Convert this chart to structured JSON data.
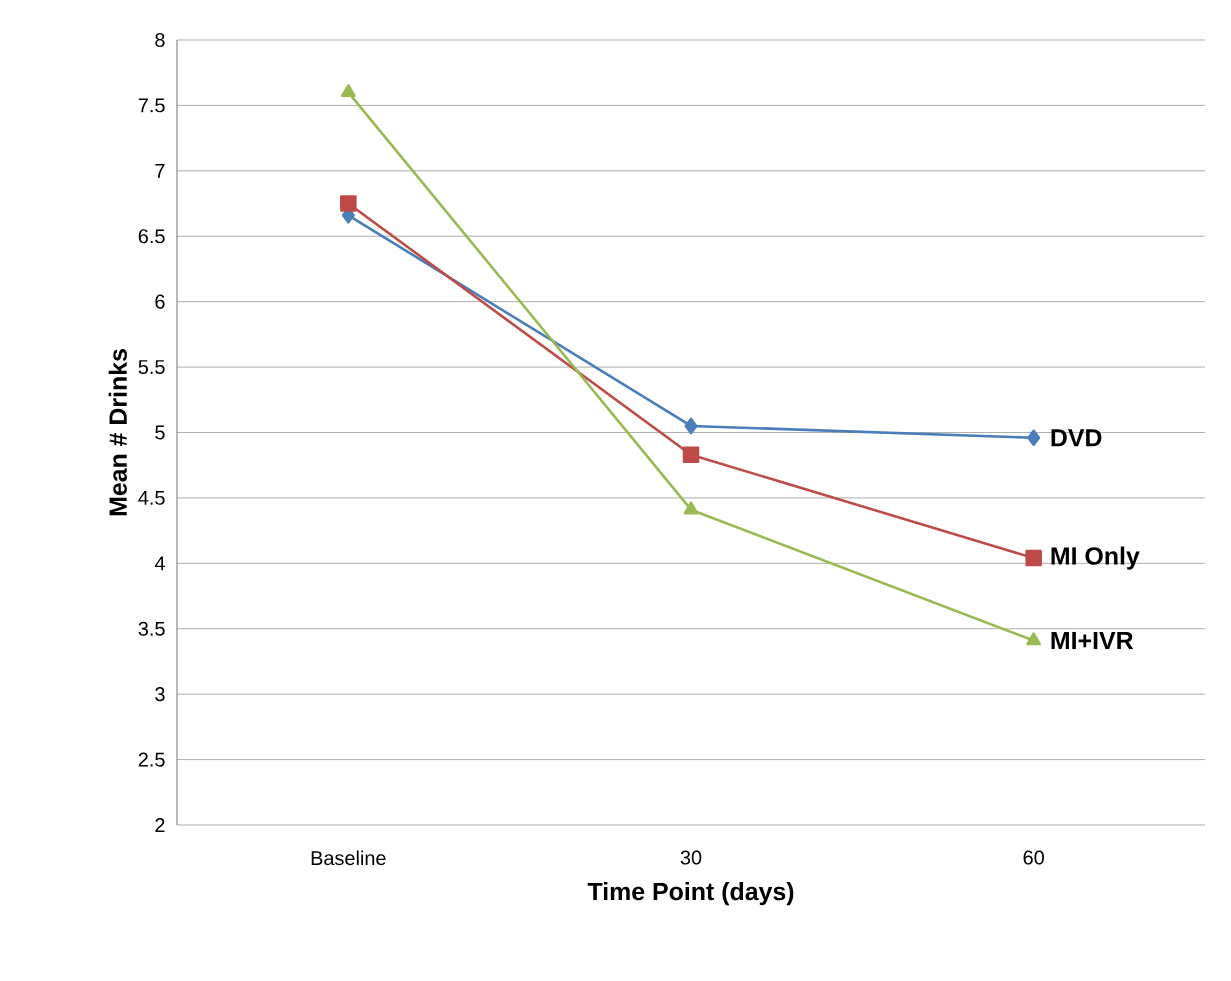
{
  "chart_data": {
    "type": "line",
    "xlabel": "Time Point (days)",
    "ylabel": "Mean # Drinks",
    "categories": [
      "Baseline",
      "30",
      "60"
    ],
    "ylim": [
      2,
      8
    ],
    "yticks": [
      2,
      2.5,
      3,
      3.5,
      4,
      4.5,
      5,
      5.5,
      6,
      6.5,
      7,
      7.5,
      8
    ],
    "grid": "y",
    "series": [
      {
        "name": "DVD",
        "color": "#4a7ebb",
        "marker": "diamond",
        "values": [
          6.66,
          5.05,
          4.96
        ]
      },
      {
        "name": "MI Only",
        "color": "#be4b48",
        "marker": "square",
        "values": [
          6.75,
          4.83,
          4.04
        ]
      },
      {
        "name": "MI+IVR",
        "color": "#98b954",
        "marker": "triangle",
        "values": [
          7.6,
          4.41,
          3.41
        ]
      }
    ]
  }
}
